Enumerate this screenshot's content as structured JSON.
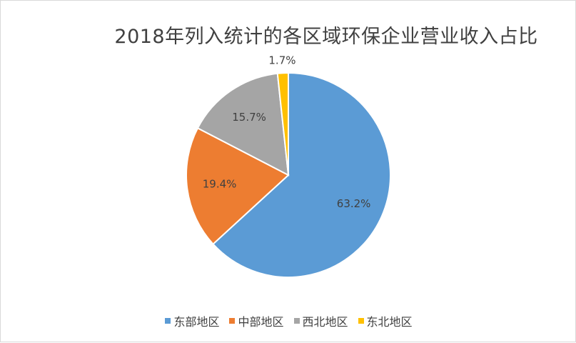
{
  "chart_data": {
    "type": "pie",
    "title": "2018年列入统计的各区域环保企业营业收入占比",
    "categories": [
      "东部地区",
      "中部地区",
      "西北地区",
      "东北地区"
    ],
    "values": [
      63.2,
      19.4,
      15.7,
      1.7
    ],
    "value_labels": [
      "63.2%",
      "19.4%",
      "15.7%",
      "1.7%"
    ],
    "colors": [
      "#5b9bd5",
      "#ed7d31",
      "#a5a5a5",
      "#ffc000"
    ],
    "start_angle": "12 o'clock",
    "direction": "clockwise",
    "legend_position": "bottom"
  }
}
